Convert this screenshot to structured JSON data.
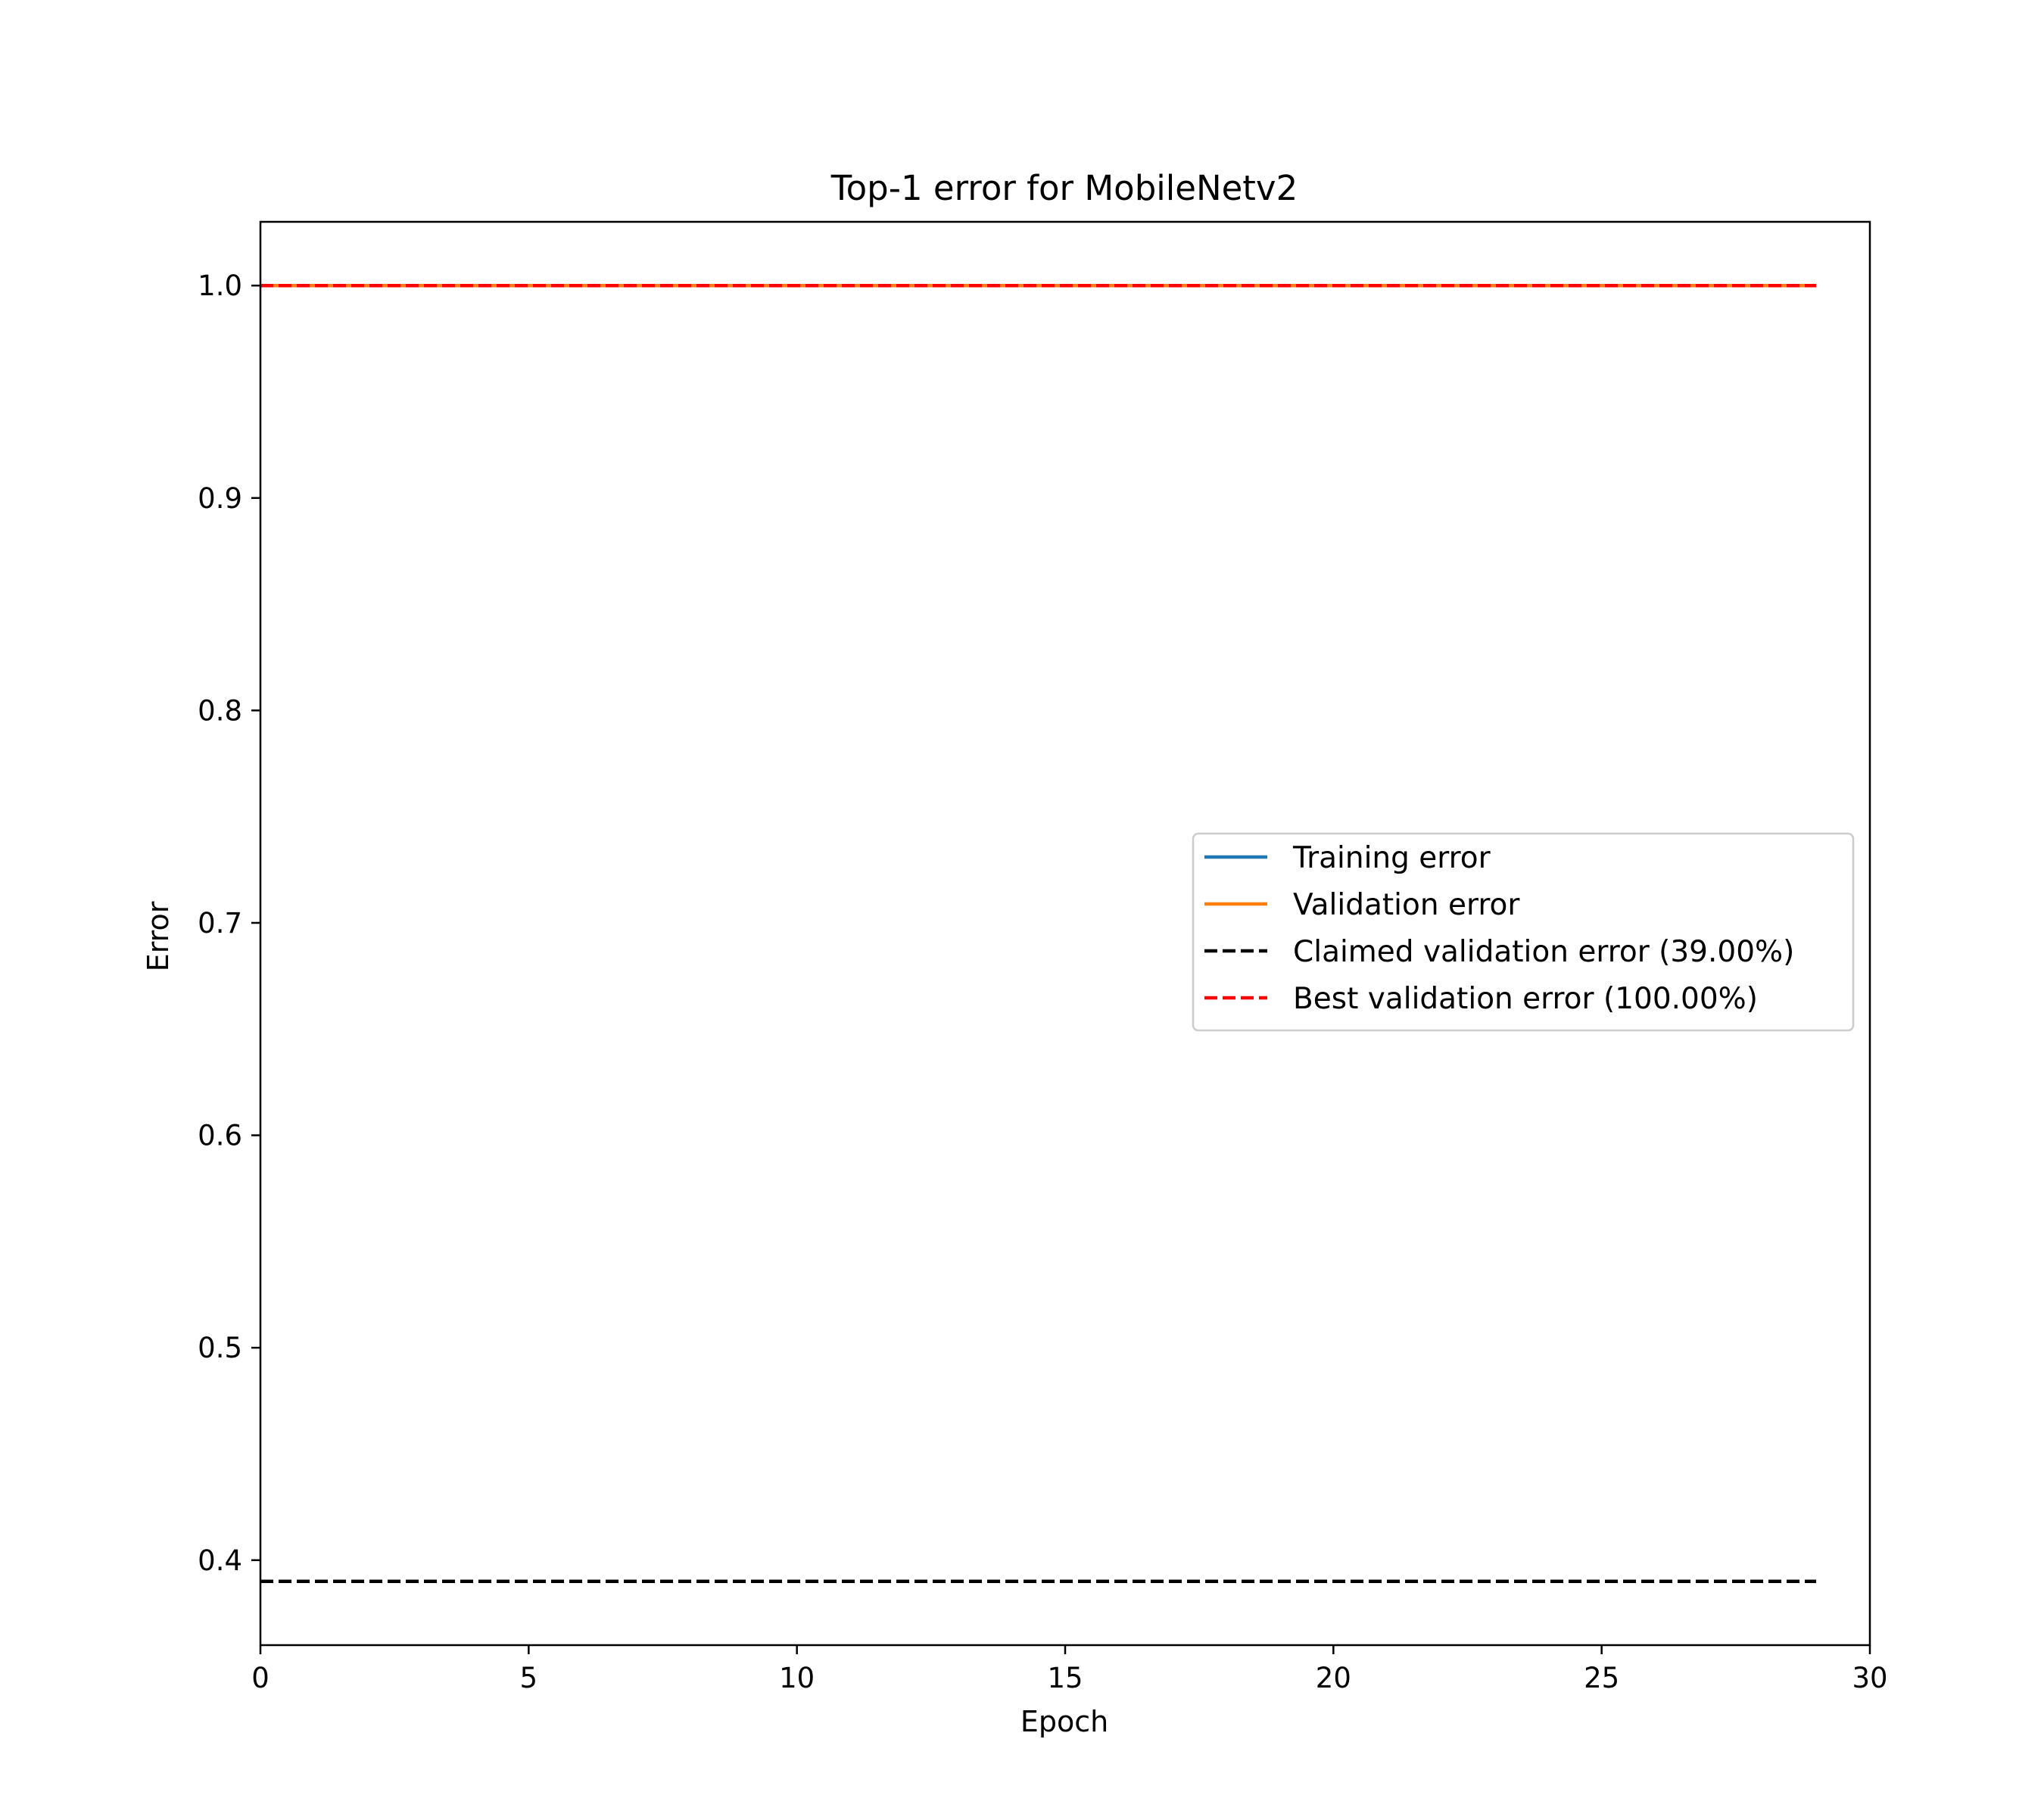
{
  "chart_data": {
    "type": "line",
    "title": "Top-1 error for MobileNetv2",
    "xlabel": "Epoch",
    "ylabel": "Error",
    "xlim": [
      0,
      30
    ],
    "ylim": [
      0.36,
      1.03
    ],
    "xticks": [
      0,
      5,
      10,
      15,
      20,
      25,
      30
    ],
    "xtick_labels": [
      "0",
      "5",
      "10",
      "15",
      "20",
      "25",
      "30"
    ],
    "yticks": [
      0.4,
      0.5,
      0.6,
      0.7,
      0.8,
      0.9,
      1.0
    ],
    "ytick_labels": [
      "0.4",
      "0.5",
      "0.6",
      "0.7",
      "0.8",
      "0.9",
      "1.0"
    ],
    "grid": false,
    "legend_position": "center-right",
    "series": [
      {
        "name": "Training error",
        "label": "Training error",
        "style": "solid",
        "color": "#1f77b4",
        "x": [
          0,
          1,
          2,
          3,
          4,
          5,
          6,
          7,
          8,
          9,
          10,
          11,
          12,
          13,
          14,
          15,
          16,
          17,
          18,
          19,
          20,
          21,
          22,
          23,
          24,
          25,
          26,
          27,
          28,
          29
        ],
        "y": [
          1.0,
          1.0,
          1.0,
          1.0,
          1.0,
          1.0,
          1.0,
          1.0,
          1.0,
          1.0,
          1.0,
          1.0,
          1.0,
          1.0,
          1.0,
          1.0,
          1.0,
          1.0,
          1.0,
          1.0,
          1.0,
          1.0,
          1.0,
          1.0,
          1.0,
          1.0,
          1.0,
          1.0,
          1.0,
          1.0
        ]
      },
      {
        "name": "Validation error",
        "label": "Validation error",
        "style": "solid",
        "color": "#ff7f0e",
        "x": [
          0,
          1,
          2,
          3,
          4,
          5,
          6,
          7,
          8,
          9,
          10,
          11,
          12,
          13,
          14,
          15,
          16,
          17,
          18,
          19,
          20,
          21,
          22,
          23,
          24,
          25,
          26,
          27,
          28,
          29
        ],
        "y": [
          1.0,
          1.0,
          1.0,
          1.0,
          1.0,
          1.0,
          1.0,
          1.0,
          1.0,
          1.0,
          1.0,
          1.0,
          1.0,
          1.0,
          1.0,
          1.0,
          1.0,
          1.0,
          1.0,
          1.0,
          1.0,
          1.0,
          1.0,
          1.0,
          1.0,
          1.0,
          1.0,
          1.0,
          1.0,
          1.0
        ]
      },
      {
        "name": "Claimed validation error",
        "label": "Claimed validation error (39.00%)",
        "style": "dashed",
        "color": "#000000",
        "x": [
          0,
          29
        ],
        "y": [
          0.39,
          0.39
        ]
      },
      {
        "name": "Best validation error",
        "label": "Best validation error (100.00%)",
        "style": "dashed",
        "color": "#ff0000",
        "x": [
          0,
          29
        ],
        "y": [
          1.0,
          1.0
        ]
      }
    ]
  }
}
